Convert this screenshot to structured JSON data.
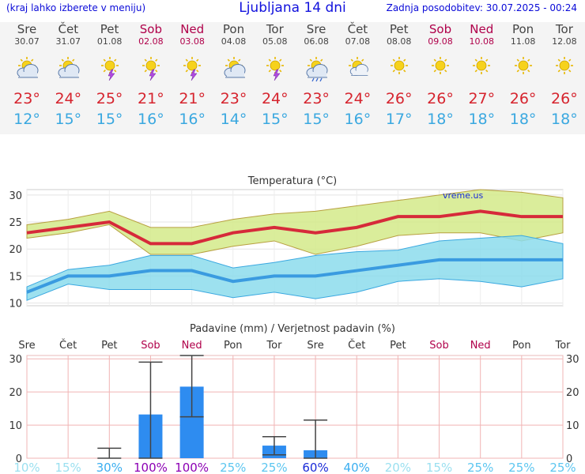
{
  "header": {
    "left": "(kraj lahko izberete v meniju)",
    "title": "Ljubljana 14 dni",
    "right": "Zadnja posodobitev: 30.07.2025 - 00:24"
  },
  "days": [
    {
      "day": "Sre",
      "date": "30.07",
      "weekend": false,
      "icon": "partly-cloudy-icon",
      "tmax": "23°",
      "tmin": "12°"
    },
    {
      "day": "Čet",
      "date": "31.07",
      "weekend": false,
      "icon": "partly-cloudy-icon",
      "tmax": "24°",
      "tmin": "15°"
    },
    {
      "day": "Pet",
      "date": "01.08",
      "weekend": false,
      "icon": "sun-thunder-icon",
      "tmax": "25°",
      "tmin": "15°"
    },
    {
      "day": "Sob",
      "date": "02.08",
      "weekend": true,
      "icon": "sun-thunder-icon",
      "tmax": "21°",
      "tmin": "16°"
    },
    {
      "day": "Ned",
      "date": "03.08",
      "weekend": true,
      "icon": "sun-thunder-icon",
      "tmax": "21°",
      "tmin": "16°"
    },
    {
      "day": "Pon",
      "date": "04.08",
      "weekend": false,
      "icon": "partly-cloudy-icon",
      "tmax": "23°",
      "tmin": "14°"
    },
    {
      "day": "Tor",
      "date": "05.08",
      "weekend": false,
      "icon": "sun-thunder-icon",
      "tmax": "24°",
      "tmin": "15°"
    },
    {
      "day": "Sre",
      "date": "06.08",
      "weekend": false,
      "icon": "sun-cloud-rain-icon",
      "tmax": "23°",
      "tmin": "15°"
    },
    {
      "day": "Čet",
      "date": "07.08",
      "weekend": false,
      "icon": "sun-cloud-icon",
      "tmax": "24°",
      "tmin": "16°"
    },
    {
      "day": "Pet",
      "date": "08.08",
      "weekend": false,
      "icon": "sun-icon",
      "tmax": "26°",
      "tmin": "17°"
    },
    {
      "day": "Sob",
      "date": "09.08",
      "weekend": true,
      "icon": "sun-icon",
      "tmax": "26°",
      "tmin": "18°"
    },
    {
      "day": "Ned",
      "date": "10.08",
      "weekend": true,
      "icon": "sun-icon",
      "tmax": "27°",
      "tmin": "18°"
    },
    {
      "day": "Pon",
      "date": "11.08",
      "weekend": false,
      "icon": "sun-icon",
      "tmax": "26°",
      "tmin": "18°"
    },
    {
      "day": "Tor",
      "date": "12.08",
      "weekend": false,
      "icon": "sun-icon",
      "tmax": "26°",
      "tmin": "18°"
    }
  ],
  "chart_data": [
    {
      "type": "line",
      "title": "Temperatura (°C)",
      "watermark": "vreme.us",
      "categories": [
        "30.07",
        "31.07",
        "01.08",
        "02.08",
        "03.08",
        "04.08",
        "05.08",
        "06.08",
        "07.08",
        "08.08",
        "09.08",
        "10.08",
        "11.08",
        "12.08"
      ],
      "ylim": [
        9.5,
        31
      ],
      "yticks": [
        "10",
        "15",
        "20",
        "25",
        "30"
      ],
      "grid": true,
      "series": [
        {
          "role": "max",
          "values": [
            23,
            24,
            25,
            21,
            21,
            23,
            24,
            23,
            24,
            26,
            26,
            27,
            26,
            26
          ],
          "band_low": [
            22,
            23,
            24.5,
            19,
            19,
            20.5,
            21.5,
            19,
            20.5,
            22.5,
            23,
            23,
            21.5,
            23
          ],
          "band_high": [
            24.5,
            25.5,
            27,
            24,
            24,
            25.5,
            26.5,
            27,
            28,
            29,
            30,
            31,
            30.5,
            29.5
          ]
        },
        {
          "role": "min",
          "values": [
            12,
            15,
            15,
            16,
            16,
            14,
            15,
            15,
            16,
            17,
            18,
            18,
            18,
            18
          ],
          "band_low": [
            10.5,
            13.5,
            12.5,
            12.5,
            12.5,
            11,
            12,
            10.8,
            12,
            14,
            14.5,
            14,
            13,
            14.5
          ],
          "band_high": [
            13,
            16.2,
            17,
            18.8,
            18.8,
            16.5,
            17.5,
            18.8,
            19.5,
            19.8,
            21.5,
            22,
            22.5,
            21
          ]
        }
      ],
      "colors": {
        "max_line": "#d62a3a",
        "max_band": "#d4ea8a",
        "min_line": "#3a9be0",
        "min_band": "#8cdcec"
      }
    },
    {
      "type": "bar",
      "title": "Padavine (mm) / Verjetnost padavin (%)",
      "categories": [
        "Sre",
        "Čet",
        "Pet",
        "Sob",
        "Ned",
        "Pon",
        "Tor",
        "Sre",
        "Čet",
        "Pet",
        "Sob",
        "Ned",
        "Pon",
        "Tor"
      ],
      "values": [
        0,
        0,
        0,
        13.2,
        21.6,
        0,
        3.8,
        2.4,
        0,
        0,
        0,
        0,
        0,
        0
      ],
      "error_low": [
        0,
        0,
        0,
        0,
        12.5,
        0,
        1,
        0,
        0,
        0,
        0,
        0,
        0,
        0
      ],
      "error_high": [
        0,
        0,
        3,
        29,
        31,
        0,
        6.5,
        11.5,
        0,
        0,
        0,
        0,
        0,
        0
      ],
      "ylim": [
        0,
        31
      ],
      "yticks": [
        "0",
        "10",
        "20",
        "30"
      ],
      "probability": [
        "10%",
        "15%",
        "30%",
        "100%",
        "100%",
        "25%",
        "25%",
        "60%",
        "40%",
        "20%",
        "15%",
        "25%",
        "25%",
        "25%"
      ],
      "prob_colors": [
        "#9be0f0",
        "#9be0f0",
        "#3aaef0",
        "#8c00b4",
        "#8c00b4",
        "#5cc6f0",
        "#5cc6f0",
        "#1a2ad8",
        "#3aaef0",
        "#9be0f0",
        "#9be0f0",
        "#5cc6f0",
        "#5cc6f0",
        "#5cc6f0"
      ],
      "colors": {
        "bar": "#2e8cf0",
        "error": "#444444",
        "grid": "#f0b4b4"
      }
    }
  ]
}
